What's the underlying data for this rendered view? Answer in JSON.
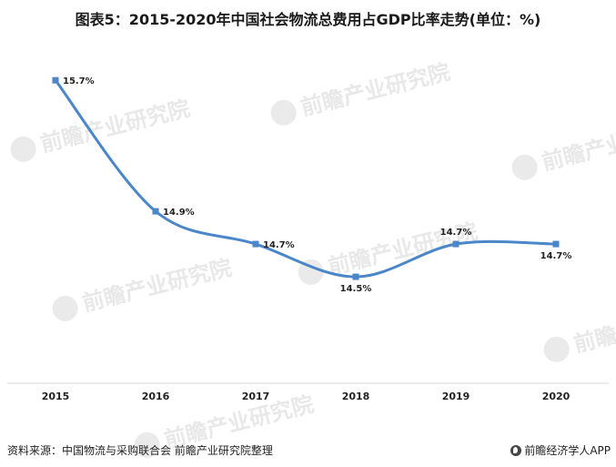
{
  "chart_data": {
    "type": "line",
    "title": "图表5：2015-2020年中国社会物流总费用占GDP比率走势(单位：%)",
    "categories": [
      "2015",
      "2016",
      "2017",
      "2018",
      "2019",
      "2020"
    ],
    "series": [
      {
        "values": [
          15.7,
          14.9,
          14.7,
          14.5,
          14.7,
          14.7
        ],
        "labels": [
          "15.7%",
          "14.9%",
          "14.7%",
          "14.5%",
          "14.7%",
          "14.7%"
        ],
        "color": "#4a86c8"
      }
    ],
    "xlabel": "",
    "ylabel": "",
    "ylim": [
      13.85,
      15.84
    ],
    "grid": false,
    "legend": "none",
    "axis_color": "#d9d9d9",
    "label_positions": [
      "right",
      "right",
      "right",
      "below",
      "above",
      "below"
    ]
  },
  "watermark": {
    "logo_text": "前瞻产业研究院",
    "icon": "qianzhan-leaf-logo-icon"
  },
  "footer": {
    "source": "资料来源：中国物流与采购联合会 前瞻产业研究院整理",
    "brand": "前瞻经济学人APP",
    "brand_icon": "qianzhan-logo-icon"
  }
}
